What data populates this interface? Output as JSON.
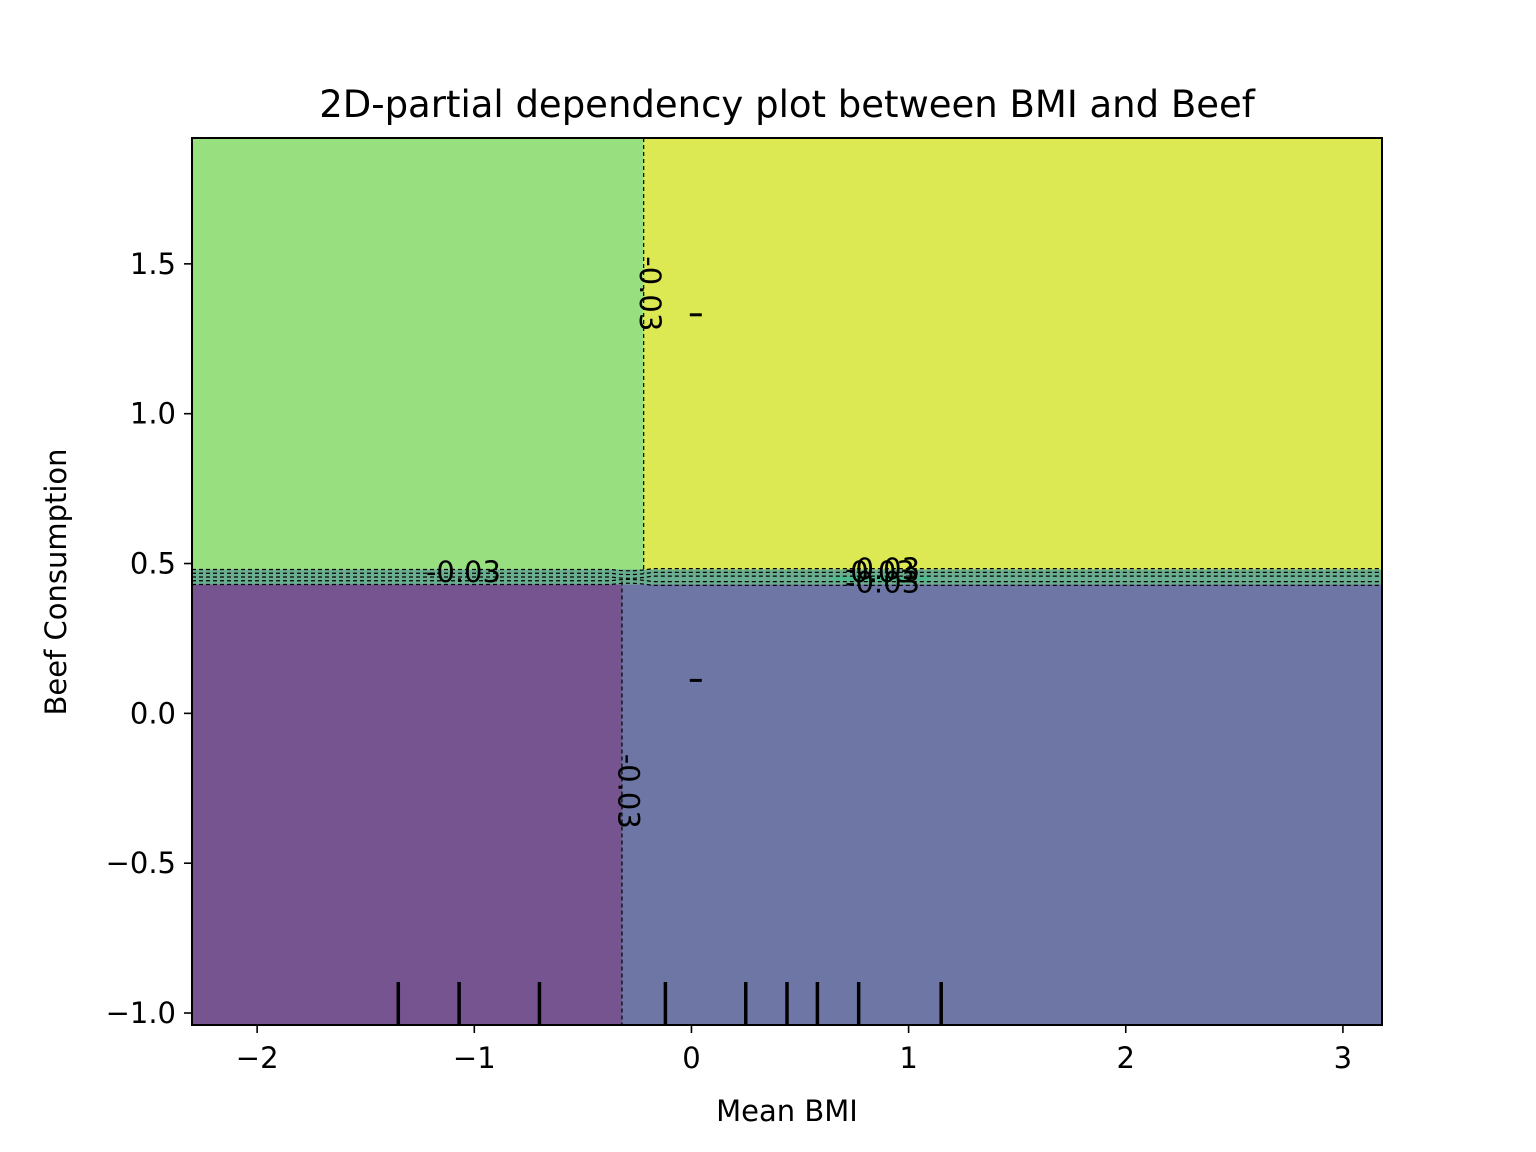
{
  "chart_data": {
    "type": "contour",
    "title": "2D-partial dependency plot between BMI and Beef",
    "xlabel": "Mean BMI",
    "ylabel": "Beef Consumption",
    "xlim": [
      -2.3,
      3.18
    ],
    "ylim": [
      -1.04,
      1.92
    ],
    "x_ticks": [
      -2,
      -1,
      0,
      1,
      2,
      3
    ],
    "x_tick_labels": [
      "−2",
      "−1",
      "0",
      "1",
      "2",
      "3"
    ],
    "y_ticks": [
      -1.0,
      -0.5,
      0.0,
      0.5,
      1.0,
      1.5
    ],
    "y_tick_labels": [
      "−1.0",
      "−0.5",
      "0.0",
      "0.5",
      "1.0",
      "1.5"
    ],
    "grid": false,
    "regions": [
      {
        "name": "low-bmi-high-beef",
        "x_range": [
          -2.3,
          -0.22
        ],
        "y_range": [
          0.46,
          1.92
        ],
        "color": "#98df80"
      },
      {
        "name": "high-bmi-high-beef",
        "x_range": [
          -0.22,
          3.18
        ],
        "y_range": [
          0.46,
          1.92
        ],
        "color": "#dde952"
      },
      {
        "name": "low-bmi-low-beef",
        "x_range": [
          -2.3,
          -0.32
        ],
        "y_range": [
          -1.04,
          0.44
        ],
        "color": "#765490"
      },
      {
        "name": "high-bmi-low-beef",
        "x_range": [
          -0.32,
          3.18
        ],
        "y_range": [
          -1.04,
          0.44
        ],
        "color": "#6e76a6"
      }
    ],
    "transition_band": {
      "y_range": [
        0.43,
        0.48
      ],
      "highlight_color": "#4fb98c",
      "highlight_x_range": [
        0.65,
        1.1
      ]
    },
    "vertical_boundaries": [
      {
        "x": -0.22,
        "y_range": [
          0.47,
          1.92
        ]
      },
      {
        "x": -0.32,
        "y_range": [
          -1.04,
          0.44
        ]
      }
    ],
    "contour_labels": [
      {
        "text": "-0.03",
        "x": -0.2,
        "y": 1.4,
        "rotation": 90
      },
      {
        "text": "-0.03",
        "x": -1.05,
        "y": 0.465,
        "rotation": 0
      },
      {
        "text": "-0.03",
        "x": -0.3,
        "y": -0.26,
        "rotation": 90
      },
      {
        "text": "-0.03",
        "x": 0.88,
        "y": 0.475,
        "rotation": 0
      },
      {
        "text": "0.03",
        "x": 0.88,
        "y": 0.465,
        "rotation": 0
      },
      {
        "text": "-0.03",
        "x": 0.88,
        "y": 0.43,
        "rotation": 0
      }
    ],
    "marks": [
      {
        "x": 0.02,
        "y": 1.33
      },
      {
        "x": 0.02,
        "y": 0.11
      }
    ],
    "rug_ticks_x": [
      -1.35,
      -1.07,
      -0.7,
      -0.12,
      0.25,
      0.44,
      0.58,
      0.77,
      1.15
    ]
  }
}
